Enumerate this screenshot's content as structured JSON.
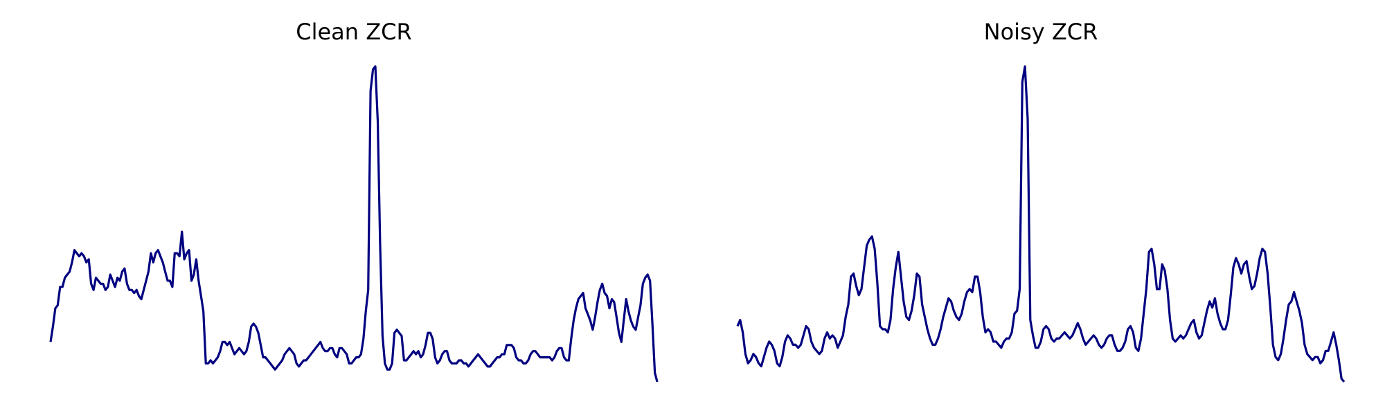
{
  "figure": {
    "line_color": "#000080",
    "background": "#ffffff"
  },
  "chart_data": [
    {
      "type": "line",
      "title": "Clean ZCR",
      "xlabel": "",
      "ylabel": "",
      "axes_visible": false,
      "grid": false,
      "xlim": [
        0,
        219
      ],
      "ylim": [
        -0.03,
        1.1
      ],
      "series": [
        {
          "values": [
            0.13,
            0.18,
            0.24,
            0.25,
            0.31,
            0.31,
            0.34,
            0.35,
            0.36,
            0.39,
            0.43,
            0.42,
            0.41,
            0.42,
            0.41,
            0.39,
            0.4,
            0.32,
            0.3,
            0.34,
            0.33,
            0.32,
            0.32,
            0.3,
            0.31,
            0.35,
            0.33,
            0.31,
            0.34,
            0.33,
            0.36,
            0.37,
            0.32,
            0.3,
            0.3,
            0.29,
            0.3,
            0.28,
            0.27,
            0.3,
            0.33,
            0.36,
            0.42,
            0.39,
            0.42,
            0.43,
            0.41,
            0.39,
            0.36,
            0.33,
            0.33,
            0.31,
            0.42,
            0.42,
            0.41,
            0.49,
            0.4,
            0.42,
            0.43,
            0.33,
            0.35,
            0.4,
            0.33,
            0.28,
            0.23,
            0.06,
            0.06,
            0.07,
            0.06,
            0.07,
            0.08,
            0.1,
            0.13,
            0.13,
            0.12,
            0.13,
            0.11,
            0.09,
            0.1,
            0.11,
            0.1,
            0.09,
            0.1,
            0.13,
            0.18,
            0.19,
            0.18,
            0.16,
            0.12,
            0.08,
            0.08,
            0.07,
            0.06,
            0.05,
            0.04,
            0.05,
            0.06,
            0.07,
            0.09,
            0.1,
            0.11,
            0.1,
            0.09,
            0.06,
            0.05,
            0.06,
            0.07,
            0.07,
            0.08,
            0.09,
            0.1,
            0.11,
            0.12,
            0.13,
            0.11,
            0.1,
            0.1,
            0.11,
            0.11,
            0.09,
            0.08,
            0.11,
            0.11,
            0.1,
            0.09,
            0.06,
            0.06,
            0.07,
            0.08,
            0.08,
            0.09,
            0.14,
            0.23,
            0.3,
            0.95,
            1.02,
            1.03,
            0.85,
            0.45,
            0.15,
            0.06,
            0.04,
            0.04,
            0.06,
            0.16,
            0.17,
            0.16,
            0.15,
            0.07,
            0.07,
            0.08,
            0.09,
            0.1,
            0.09,
            0.1,
            0.08,
            0.09,
            0.12,
            0.16,
            0.16,
            0.14,
            0.08,
            0.06,
            0.07,
            0.09,
            0.1,
            0.1,
            0.07,
            0.06,
            0.06,
            0.06,
            0.07,
            0.07,
            0.06,
            0.06,
            0.05,
            0.06,
            0.07,
            0.08,
            0.09,
            0.08,
            0.07,
            0.06,
            0.05,
            0.05,
            0.06,
            0.07,
            0.08,
            0.08,
            0.09,
            0.09,
            0.12,
            0.12,
            0.12,
            0.11,
            0.08,
            0.07,
            0.07,
            0.06,
            0.06,
            0.07,
            0.09,
            0.1,
            0.1,
            0.09,
            0.08,
            0.08,
            0.08,
            0.08,
            0.08,
            0.07,
            0.08,
            0.1,
            0.11,
            0.11,
            0.08,
            0.07,
            0.07,
            0.14,
            0.2,
            0.24,
            0.27,
            0.28,
            0.29,
            0.24,
            0.22,
            0.2,
            0.17,
            0.21,
            0.26,
            0.3,
            0.32,
            0.29,
            0.28,
            0.24,
            0.27,
            0.26,
            0.21,
            0.16,
            0.13,
            0.2,
            0.27,
            0.23,
            0.2,
            0.18,
            0.17,
            0.21,
            0.25,
            0.32,
            0.34,
            0.35,
            0.33,
            0.19,
            0.03,
            0.0
          ]
        }
      ]
    },
    {
      "type": "line",
      "title": "Noisy ZCR",
      "xlabel": "",
      "ylabel": "",
      "axes_visible": false,
      "grid": false,
      "xlim": [
        0,
        219
      ],
      "ylim": [
        -0.03,
        1.1
      ],
      "series": [
        {
          "values": [
            0.18,
            0.2,
            0.16,
            0.09,
            0.06,
            0.07,
            0.09,
            0.08,
            0.06,
            0.05,
            0.08,
            0.11,
            0.13,
            0.12,
            0.1,
            0.06,
            0.05,
            0.08,
            0.13,
            0.15,
            0.14,
            0.12,
            0.12,
            0.11,
            0.12,
            0.15,
            0.18,
            0.17,
            0.13,
            0.11,
            0.1,
            0.09,
            0.1,
            0.14,
            0.16,
            0.14,
            0.15,
            0.14,
            0.11,
            0.13,
            0.15,
            0.21,
            0.25,
            0.34,
            0.35,
            0.31,
            0.28,
            0.3,
            0.37,
            0.44,
            0.46,
            0.47,
            0.43,
            0.32,
            0.18,
            0.17,
            0.17,
            0.16,
            0.2,
            0.3,
            0.37,
            0.42,
            0.34,
            0.26,
            0.21,
            0.2,
            0.23,
            0.28,
            0.35,
            0.34,
            0.25,
            0.21,
            0.17,
            0.14,
            0.12,
            0.12,
            0.14,
            0.17,
            0.21,
            0.24,
            0.27,
            0.26,
            0.23,
            0.21,
            0.2,
            0.22,
            0.26,
            0.29,
            0.3,
            0.29,
            0.34,
            0.34,
            0.29,
            0.21,
            0.16,
            0.17,
            0.16,
            0.13,
            0.13,
            0.12,
            0.11,
            0.13,
            0.14,
            0.14,
            0.16,
            0.22,
            0.23,
            0.3,
            0.97,
            1.02,
            0.85,
            0.2,
            0.15,
            0.11,
            0.11,
            0.13,
            0.17,
            0.18,
            0.17,
            0.14,
            0.13,
            0.14,
            0.14,
            0.15,
            0.16,
            0.15,
            0.14,
            0.15,
            0.17,
            0.19,
            0.17,
            0.14,
            0.12,
            0.13,
            0.14,
            0.15,
            0.14,
            0.12,
            0.11,
            0.12,
            0.14,
            0.15,
            0.15,
            0.12,
            0.1,
            0.1,
            0.11,
            0.13,
            0.17,
            0.18,
            0.16,
            0.11,
            0.1,
            0.14,
            0.22,
            0.3,
            0.42,
            0.43,
            0.38,
            0.3,
            0.3,
            0.38,
            0.36,
            0.3,
            0.2,
            0.14,
            0.13,
            0.14,
            0.15,
            0.14,
            0.15,
            0.17,
            0.19,
            0.2,
            0.16,
            0.14,
            0.15,
            0.19,
            0.23,
            0.26,
            0.24,
            0.27,
            0.22,
            0.19,
            0.17,
            0.17,
            0.2,
            0.28,
            0.37,
            0.4,
            0.38,
            0.35,
            0.38,
            0.39,
            0.34,
            0.3,
            0.31,
            0.35,
            0.4,
            0.43,
            0.42,
            0.35,
            0.24,
            0.12,
            0.08,
            0.07,
            0.09,
            0.14,
            0.2,
            0.25,
            0.26,
            0.29,
            0.26,
            0.23,
            0.19,
            0.12,
            0.09,
            0.08,
            0.07,
            0.08,
            0.08,
            0.06,
            0.07,
            0.1,
            0.1,
            0.13,
            0.16,
            0.12,
            0.07,
            0.01,
            0.0
          ]
        }
      ]
    }
  ]
}
